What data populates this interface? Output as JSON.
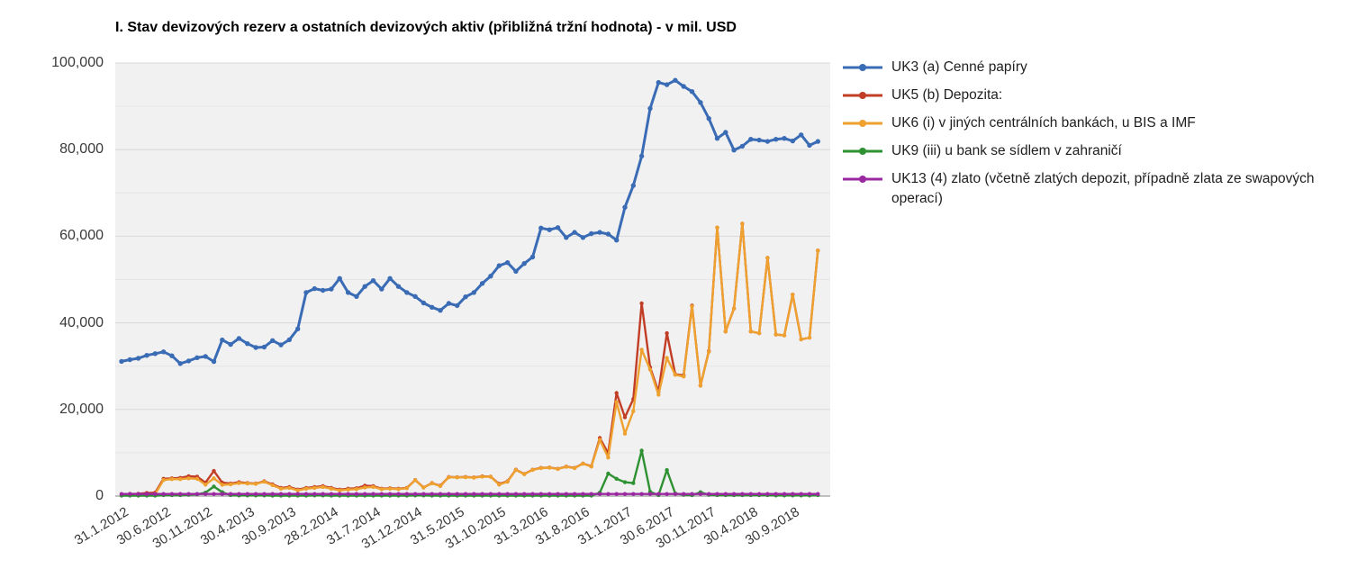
{
  "title": "I. Stav devizových rezerv a ostatních devizových aktiv (přibližná tržní hodnota) - v mil. USD",
  "chart_data": {
    "type": "line",
    "title": "I. Stav devizových rezerv a ostatních devizových aktiv (přibližná tržní hodnota) - v mil. USD",
    "ylabel": "",
    "xlabel": "",
    "ylim": [
      0,
      100000
    ],
    "grid": true,
    "legend_position": "right",
    "x_frequency": "monthly",
    "n_points": 84,
    "x_tick_labels": [
      "31.1.2012",
      "30.6.2012",
      "30.11.2012",
      "30.4.2013",
      "30.9.2013",
      "28.2.2014",
      "31.7.2014",
      "31.12.2014",
      "31.5.2015",
      "31.10.2015",
      "31.3.2016",
      "31.8.2016",
      "31.1.2017",
      "30.6.2017",
      "30.11.2017",
      "30.4.2018",
      "30.9.2018"
    ],
    "x_tick_every_n_points": 5,
    "y_ticks": [
      {
        "value": 0,
        "label": "0"
      },
      {
        "value": 20000,
        "label": "20,000"
      },
      {
        "value": 40000,
        "label": "40,000"
      },
      {
        "value": 60000,
        "label": "60,000"
      },
      {
        "value": 80000,
        "label": "80,000"
      },
      {
        "value": 100000,
        "label": "100,000"
      }
    ],
    "series": [
      {
        "name": "UK3 (a) Cenné papíry",
        "color": "#3a6bb5",
        "values": [
          31100,
          31500,
          31800,
          32500,
          32900,
          33300,
          32400,
          30600,
          31200,
          31950,
          32250,
          31050,
          36050,
          35000,
          36400,
          35200,
          34300,
          34400,
          35900,
          34900,
          36100,
          38600,
          47000,
          47900,
          47500,
          47800,
          50250,
          47000,
          46100,
          48400,
          49750,
          47800,
          50250,
          48400,
          47000,
          46100,
          44600,
          43600,
          42900,
          44500,
          44000,
          46000,
          47000,
          49100,
          50800,
          53200,
          53900,
          51900,
          53700,
          55200,
          61900,
          61500,
          62000,
          59700,
          60900,
          59700,
          60600,
          60900,
          60500,
          59100,
          66700,
          71700,
          78500,
          89500,
          95500,
          95000,
          96000,
          94600,
          93400,
          90900,
          87200,
          82600,
          84000,
          79900,
          80800,
          82400,
          82200,
          81900,
          82400,
          82600,
          82000,
          83400,
          81000,
          81900
        ]
      },
      {
        "name": "UK5 (b) Depozita:",
        "color": "#c23d26",
        "values": [
          400,
          500,
          550,
          700,
          800,
          4000,
          4100,
          4200,
          4600,
          4500,
          3100,
          5800,
          3100,
          2900,
          3200,
          3000,
          2900,
          3400,
          2700,
          1900,
          2100,
          1500,
          1900,
          2100,
          2300,
          1900,
          1500,
          1700,
          1800,
          2400,
          2300,
          1700,
          1800,
          1700,
          1900,
          3700,
          2000,
          3000,
          2400,
          4400,
          4350,
          4400,
          4300,
          4550,
          4500,
          2800,
          3400,
          6100,
          5100,
          6100,
          6500,
          6600,
          6300,
          6800,
          6500,
          7500,
          6900,
          13400,
          9900,
          23800,
          18200,
          22400,
          44500,
          29700,
          24100,
          37600,
          28100,
          27900,
          44000,
          25500,
          33500,
          62000,
          38000,
          43300,
          62900,
          38000,
          37600,
          55000,
          37300,
          37100,
          46500,
          36200,
          36600,
          56700
        ]
      },
      {
        "name": "UK6 (i) v jiných centrálních bankách, u BIS a IMF",
        "color": "#efa12f",
        "values": [
          200,
          300,
          350,
          400,
          500,
          3700,
          3900,
          3900,
          4100,
          4000,
          2650,
          4100,
          2600,
          2700,
          3000,
          2900,
          2800,
          3300,
          2500,
          1700,
          1900,
          1300,
          1700,
          1900,
          2100,
          1700,
          1300,
          1500,
          1600,
          2000,
          2100,
          1600,
          1700,
          1600,
          1800,
          3680,
          1950,
          2950,
          2300,
          4350,
          4300,
          4350,
          4250,
          4500,
          4450,
          2650,
          3300,
          6050,
          5050,
          6050,
          6450,
          6550,
          6250,
          6750,
          6450,
          7480,
          6800,
          13000,
          8900,
          21700,
          14400,
          19600,
          33800,
          29200,
          23400,
          31900,
          28000,
          27600,
          43800,
          25500,
          33300,
          62000,
          38000,
          43300,
          62900,
          38000,
          37600,
          55000,
          37300,
          37100,
          46500,
          36200,
          36600,
          56700
        ]
      },
      {
        "name": "UK9 (iii) u bank se sídlem v zahraničí",
        "color": "#2e9132",
        "values": [
          100,
          100,
          100,
          100,
          100,
          200,
          200,
          200,
          300,
          400,
          800,
          2200,
          900,
          200,
          150,
          150,
          150,
          150,
          100,
          100,
          100,
          100,
          100,
          150,
          150,
          100,
          100,
          100,
          100,
          100,
          100,
          100,
          100,
          100,
          100,
          150,
          150,
          100,
          100,
          100,
          100,
          100,
          100,
          100,
          100,
          100,
          100,
          100,
          100,
          100,
          100,
          100,
          100,
          100,
          100,
          100,
          100,
          800,
          5200,
          4000,
          3200,
          3000,
          10500,
          1000,
          200,
          6000,
          600,
          300,
          200,
          900,
          300,
          200,
          200,
          200,
          200,
          200,
          200,
          200,
          150,
          150,
          150,
          150,
          150,
          200
        ]
      },
      {
        "name": "UK13 (4) zlato (včetně zlatých depozit, případně zlata ze swapových operací)",
        "color": "#9a28a0",
        "values": [
          480,
          480,
          480,
          480,
          480,
          480,
          480,
          480,
          480,
          480,
          480,
          480,
          480,
          480,
          480,
          480,
          480,
          480,
          480,
          480,
          480,
          480,
          480,
          480,
          480,
          480,
          480,
          480,
          480,
          480,
          480,
          480,
          480,
          480,
          480,
          480,
          480,
          480,
          480,
          480,
          480,
          480,
          480,
          480,
          480,
          480,
          480,
          480,
          480,
          480,
          480,
          480,
          480,
          480,
          480,
          480,
          480,
          480,
          480,
          480,
          480,
          480,
          480,
          480,
          480,
          480,
          480,
          480,
          480,
          480,
          480,
          480,
          480,
          480,
          480,
          480,
          480,
          480,
          480,
          480,
          480,
          480,
          480,
          480
        ]
      }
    ],
    "style": {
      "plot_bg": "#f1f1f1",
      "grid_minor": "#e6e6e6",
      "grid_major": "#d8d8d8",
      "axis_line": "#9e9e9e"
    }
  }
}
